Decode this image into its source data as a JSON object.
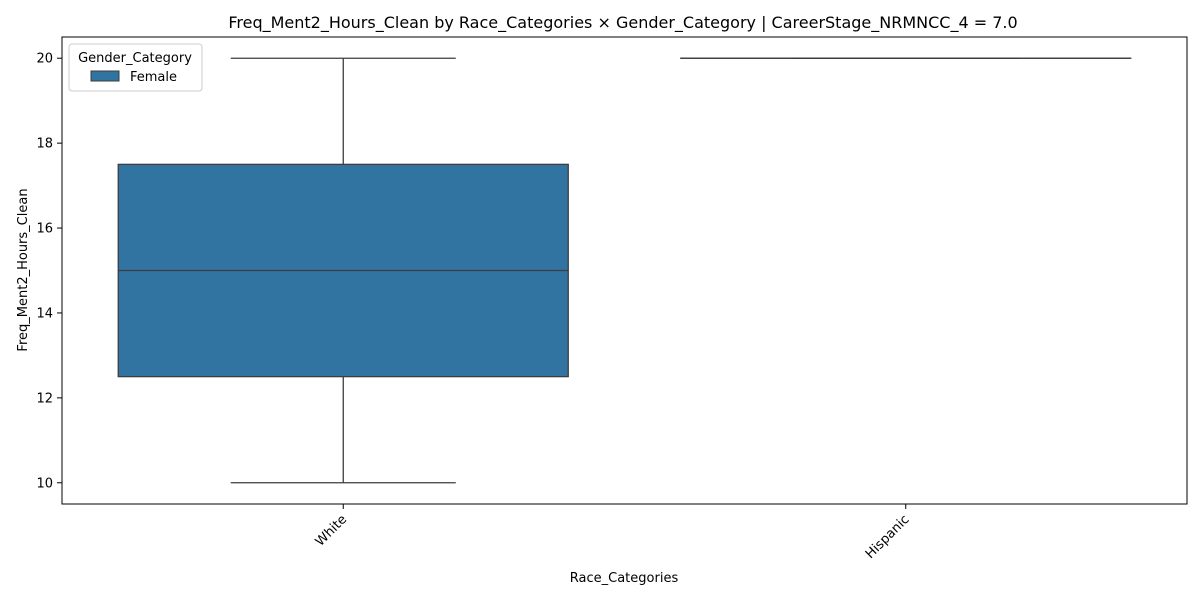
{
  "chart_data": {
    "type": "boxplot",
    "title": "Freq_Ment2_Hours_Clean by Race_Categories × Gender_Category | CareerStage_NRMNCC_4 = 7.0",
    "xlabel": "Race_Categories",
    "ylabel": "Freq_Ment2_Hours_Clean",
    "categories": [
      "White",
      "Hispanic"
    ],
    "ylim": [
      9.5,
      20.5
    ],
    "yticks": [
      10,
      12,
      14,
      16,
      18,
      20
    ],
    "ytick_labels": [
      "10",
      "12",
      "14",
      "16",
      "18",
      "20"
    ],
    "grid": false,
    "legend": {
      "title": "Gender_Category",
      "placement": "top-left",
      "entries": [
        "Female"
      ]
    },
    "series": [
      {
        "name": "Female",
        "color": "#3274a1",
        "boxes": [
          {
            "category": "White",
            "min": 10,
            "q1": 12.5,
            "median": 15,
            "q3": 17.5,
            "max": 20
          },
          {
            "category": "Hispanic",
            "min": 20,
            "q1": 20,
            "median": 20,
            "q3": 20,
            "max": 20
          }
        ]
      }
    ],
    "line_color": "#3d3d3d"
  }
}
